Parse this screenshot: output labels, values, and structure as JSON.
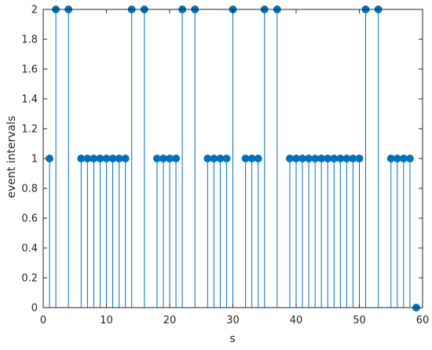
{
  "chart_data": {
    "type": "stem",
    "xlabel": "s",
    "ylabel": "event intervals",
    "xlim": [
      0,
      60
    ],
    "ylim": [
      0,
      2
    ],
    "xticks": [
      0,
      10,
      20,
      30,
      40,
      50,
      60
    ],
    "yticks": [
      0,
      0.2,
      0.4,
      0.6,
      0.8,
      1,
      1.2,
      1.4,
      1.6,
      1.8,
      2
    ],
    "ytick_labels": [
      "0",
      "0.2",
      "0.4",
      "0.6",
      "0.8",
      "1",
      "1.2",
      "1.4",
      "1.6",
      "1.8",
      "2"
    ],
    "grid": false,
    "series": [
      {
        "x": [
          1,
          2,
          4,
          6,
          7,
          8,
          9,
          10,
          11,
          12,
          13,
          14,
          16,
          18,
          19,
          20,
          21,
          22,
          24,
          26,
          27,
          28,
          29,
          30,
          32,
          33,
          34,
          35,
          37,
          39,
          40,
          41,
          42,
          43,
          44,
          45,
          46,
          47,
          48,
          49,
          50,
          51,
          53,
          55,
          56,
          57,
          58,
          59
        ],
        "y": [
          1,
          2,
          2,
          1,
          1,
          1,
          1,
          1,
          1,
          1,
          1,
          2,
          2,
          1,
          1,
          1,
          1,
          2,
          2,
          1,
          1,
          1,
          1,
          2,
          1,
          1,
          1,
          2,
          2,
          1,
          1,
          1,
          1,
          1,
          1,
          1,
          1,
          1,
          1,
          1,
          1,
          2,
          2,
          1,
          1,
          1,
          1,
          0
        ]
      }
    ],
    "colors": {
      "stem": "#0072BD",
      "axes": "#262626",
      "background": "#ffffff"
    }
  }
}
